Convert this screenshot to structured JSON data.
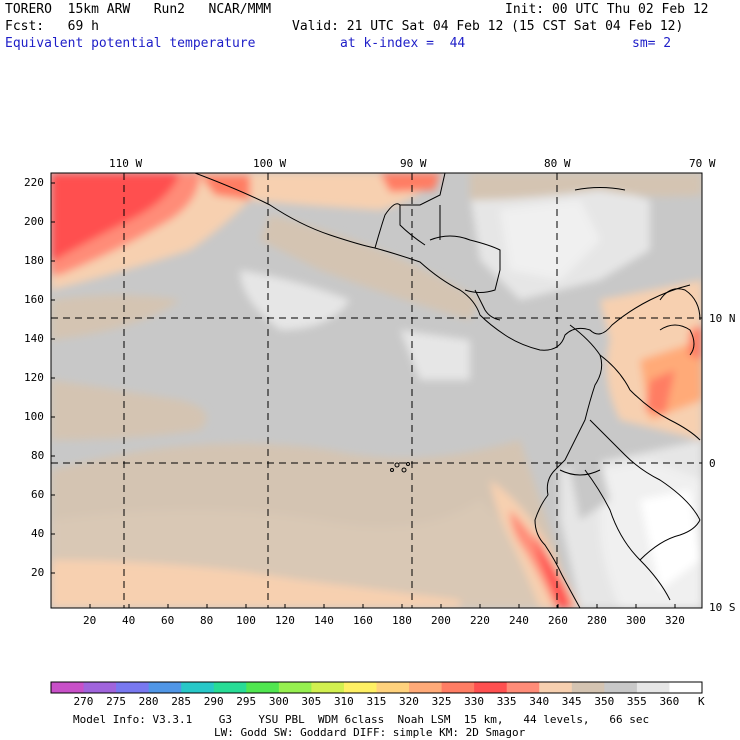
{
  "header": {
    "model": "TORERO  15km ARW   Run2   NCAR/MMM",
    "init": "Init: 00 UTC Thu 02 Feb 12",
    "fcst": "Fcst:   69 h",
    "valid": "Valid: 21 UTC Sat 04 Feb 12 (15 CST Sat 04 Feb 12)",
    "field": "Equivalent potential temperature",
    "kindex": "at k-index =  44",
    "sm": "sm= 2"
  },
  "map": {
    "lon_labels": [
      "110 W",
      "100 W",
      "90 W",
      "80 W",
      "70 W"
    ],
    "lat_labels": [
      "10 N",
      "0",
      "10 S"
    ],
    "y_ticks": [
      "220",
      "200",
      "180",
      "160",
      "140",
      "120",
      "100",
      "80",
      "60",
      "40",
      "20"
    ],
    "x_ticks": [
      "20",
      "40",
      "60",
      "80",
      "100",
      "120",
      "140",
      "160",
      "180",
      "200",
      "220",
      "240",
      "260",
      "280",
      "300",
      "320"
    ],
    "colors": {
      "ocean_base": "#c8c8c8",
      "warm_light": "#f7d0b0",
      "warm_mid": "#ffaa88",
      "warm_hot": "#ff5050",
      "tan": "#d4c4b2",
      "cool": "#f0f0f0"
    }
  },
  "colorbar": {
    "labels": [
      "270",
      "275",
      "280",
      "285",
      "290",
      "295",
      "300",
      "305",
      "310",
      "315",
      "320",
      "325",
      "330",
      "335",
      "340",
      "345",
      "350",
      "355",
      "360"
    ],
    "unit": "K",
    "colors": [
      "#c850c8",
      "#a064dc",
      "#7878f0",
      "#5096e6",
      "#28c8c8",
      "#28dc96",
      "#50e650",
      "#96f050",
      "#d2f050",
      "#fff064",
      "#ffd27d",
      "#ffaa78",
      "#ff7d64",
      "#ff5050",
      "#ff8c78",
      "#f7d0b0",
      "#d4c4b2",
      "#c8c8c8",
      "#e6e6e6",
      "#ffffff"
    ]
  },
  "footer": {
    "line1": "Model Info: V3.3.1    G3    YSU PBL  WDM 6class  Noah LSM  15 km,   44 levels,   66 sec",
    "line2": "LW: Godd SW: Goddard DIFF: simple KM: 2D Smagor"
  }
}
